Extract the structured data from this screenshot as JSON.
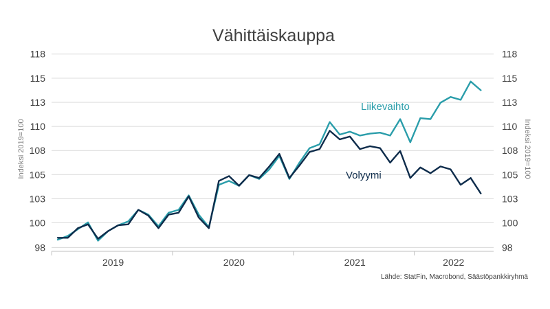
{
  "chart_data": {
    "type": "line",
    "title": "Vähittäiskauppa",
    "ylabel_left": "Indeksi 2019=100",
    "ylabel_right": "Indeksi 2019=100",
    "ylim": [
      97.5,
      118
    ],
    "y_ticks": [
      98,
      100,
      103,
      105,
      108,
      110,
      113,
      115,
      118
    ],
    "y_tick_values": [
      97.9,
      100.45,
      102.95,
      105.45,
      107.95,
      110.45,
      112.95,
      115.45,
      117.95
    ],
    "x_start_year": 2019,
    "x_months": 43,
    "x_year_labels": [
      "2019",
      "2020",
      "2021",
      "2022"
    ],
    "grid": true,
    "source": "Lähde: StatFin, Macrobond, Säästöpankkiryhmä",
    "series": [
      {
        "name": "Liikevaihto",
        "color": "#2a9daa",
        "values": [
          98.7,
          99.1,
          99.8,
          100.5,
          98.6,
          99.6,
          100.2,
          100.6,
          101.8,
          101.3,
          100.1,
          101.5,
          101.8,
          103.3,
          101.3,
          100.0,
          104.4,
          104.8,
          104.3,
          105.4,
          105.0,
          106.0,
          107.4,
          105.0,
          106.7,
          108.2,
          108.6,
          110.9,
          109.6,
          109.9,
          109.5,
          109.7,
          109.8,
          109.5,
          111.2,
          108.8,
          111.3,
          111.2,
          112.9,
          113.5,
          113.2,
          115.1,
          114.2
        ]
      },
      {
        "name": "Volyymi",
        "color": "#0e2c4b",
        "values": [
          98.9,
          98.9,
          99.9,
          100.3,
          98.8,
          99.6,
          100.2,
          100.3,
          101.8,
          101.2,
          99.9,
          101.3,
          101.5,
          103.2,
          101.0,
          99.9,
          104.8,
          105.3,
          104.3,
          105.4,
          105.1,
          106.3,
          107.6,
          105.1,
          106.4,
          107.8,
          108.1,
          110.0,
          109.1,
          109.4,
          108.1,
          108.4,
          108.2,
          106.7,
          107.9,
          105.1,
          106.2,
          105.6,
          106.3,
          106.0,
          104.4,
          105.1,
          103.5
        ]
      }
    ]
  }
}
